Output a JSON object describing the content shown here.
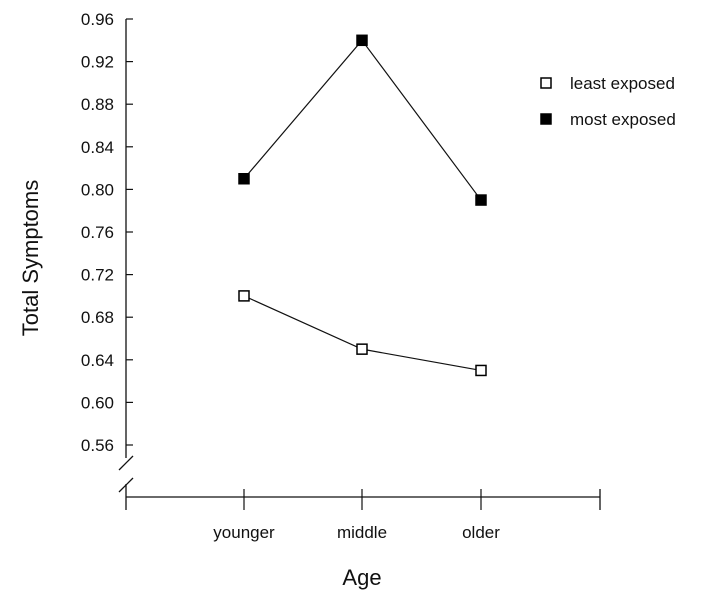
{
  "chart_data": {
    "type": "line",
    "title": "",
    "xlabel": "Age",
    "ylabel": "Total Symptoms",
    "categories": [
      "younger",
      "middle",
      "older"
    ],
    "y_ticks": [
      "0.56",
      "0.60",
      "0.64",
      "0.68",
      "0.72",
      "0.76",
      "0.80",
      "0.84",
      "0.88",
      "0.92",
      "0.96"
    ],
    "ylim": [
      0.56,
      0.96
    ],
    "y_axis_break": true,
    "grid": false,
    "legend_position": "top-right",
    "series": [
      {
        "name": "least exposed",
        "marker": "open-square",
        "values": [
          0.7,
          0.65,
          0.63
        ]
      },
      {
        "name": "most exposed",
        "marker": "filled-square",
        "values": [
          0.81,
          0.94,
          0.79
        ]
      }
    ]
  }
}
